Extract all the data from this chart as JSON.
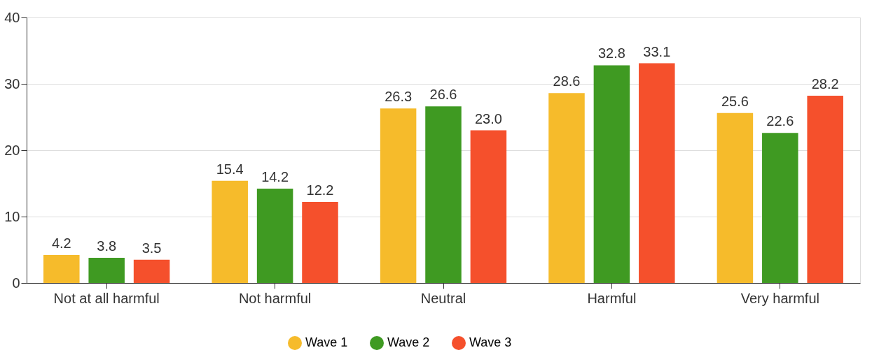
{
  "chart_data": {
    "type": "bar",
    "categories": [
      "Not at all harmful",
      "Not harmful",
      "Neutral",
      "Harmful",
      "Very harmful"
    ],
    "series": [
      {
        "name": "Wave 1",
        "color": "#f6bb2b",
        "values": [
          4.2,
          15.4,
          26.3,
          28.6,
          25.6
        ],
        "value_labels": [
          "4.2",
          "15.4",
          "26.3",
          "28.6",
          "25.6"
        ]
      },
      {
        "name": "Wave 2",
        "color": "#3f9a22",
        "values": [
          3.8,
          14.2,
          26.6,
          32.8,
          22.6
        ],
        "value_labels": [
          "3.8",
          "14.2",
          "26.6",
          "32.8",
          "22.6"
        ]
      },
      {
        "name": "Wave 3",
        "color": "#f5502c",
        "values": [
          3.5,
          12.2,
          23.0,
          33.1,
          28.2
        ],
        "value_labels": [
          "3.5",
          "12.2",
          "23.0",
          "33.1",
          "28.2"
        ]
      }
    ],
    "ylim": [
      0,
      40
    ],
    "yticks": [
      0,
      10,
      20,
      30,
      40
    ],
    "grid": "y",
    "legend": "bottom"
  }
}
